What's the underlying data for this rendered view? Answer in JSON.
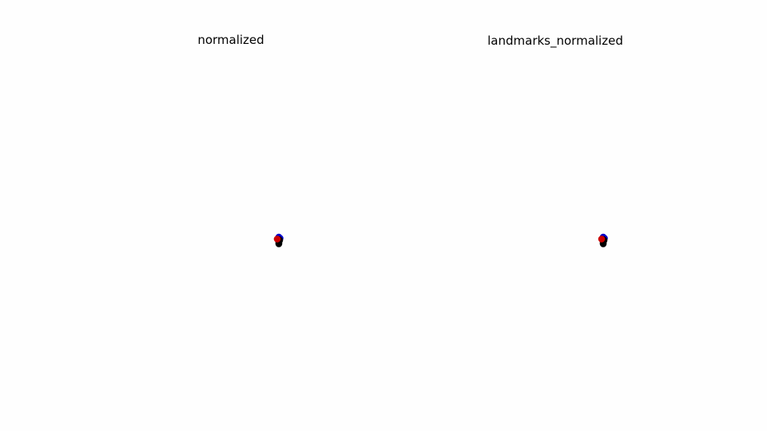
{
  "chart_data": [
    {
      "type": "scatter",
      "title": "normalized",
      "grid": false,
      "axes_visible": false,
      "series": [
        {
          "color": "#0000cc",
          "points": [
            [
              0.0,
              0.6
            ],
            [
              0.3,
              0.3
            ]
          ]
        },
        {
          "color": "#000000",
          "points": [
            [
              0.0,
              0.0
            ],
            [
              0.0,
              -0.4
            ],
            [
              0.0,
              -0.8
            ],
            [
              0.0,
              -1.1
            ],
            [
              0.2,
              -0.2
            ]
          ]
        },
        {
          "color": "#cc0000",
          "points": [
            [
              -0.4,
              0.1
            ]
          ]
        }
      ]
    },
    {
      "type": "scatter",
      "title": "landmarks_normalized",
      "grid": false,
      "axes_visible": false,
      "series": [
        {
          "color": "#0000cc",
          "points": [
            [
              0.0,
              0.6
            ],
            [
              0.3,
              0.3
            ]
          ]
        },
        {
          "color": "#000000",
          "points": [
            [
              0.0,
              0.0
            ],
            [
              0.0,
              -0.4
            ],
            [
              0.0,
              -0.8
            ],
            [
              0.0,
              -1.1
            ],
            [
              0.2,
              -0.2
            ]
          ]
        },
        {
          "color": "#cc0000",
          "points": [
            [
              -0.4,
              0.1
            ]
          ]
        }
      ]
    }
  ]
}
